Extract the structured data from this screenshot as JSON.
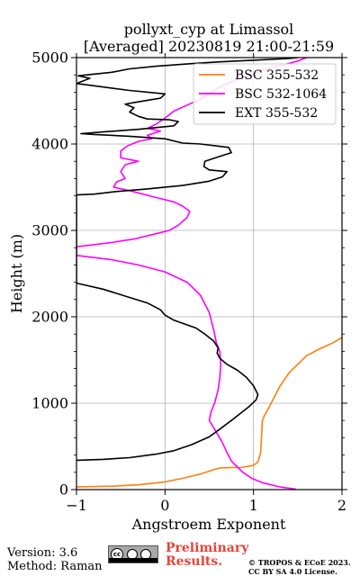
{
  "chart_data": {
    "type": "line",
    "title_line1": "pollyxt_cyp at Limassol",
    "title_line2": "[Averaged] 20230819 21:00-21:59",
    "xlabel": "Angstroem Exponent",
    "ylabel": "Height (m)",
    "xlim": [
      -1,
      2
    ],
    "ylim": [
      0,
      5000
    ],
    "x_ticks": [
      "−1",
      "0",
      "1",
      "2"
    ],
    "y_ticks": [
      "0",
      "1000",
      "2000",
      "3000",
      "4000",
      "5000"
    ],
    "grid": true,
    "legend_position": "top-right",
    "series": [
      {
        "name": "BSC 355-532",
        "color": "#ff7f0e",
        "points": [
          [
            -1.0,
            30
          ],
          [
            -0.6,
            40
          ],
          [
            -0.3,
            55
          ],
          [
            0.0,
            90
          ],
          [
            0.2,
            130
          ],
          [
            0.4,
            180
          ],
          [
            0.55,
            230
          ],
          [
            0.62,
            250
          ],
          [
            0.75,
            255
          ],
          [
            0.85,
            255
          ],
          [
            1.0,
            280
          ],
          [
            1.05,
            320
          ],
          [
            1.08,
            420
          ],
          [
            1.09,
            600
          ],
          [
            1.1,
            800
          ],
          [
            1.12,
            850
          ],
          [
            1.2,
            1000
          ],
          [
            1.3,
            1200
          ],
          [
            1.4,
            1350
          ],
          [
            1.5,
            1450
          ],
          [
            1.6,
            1550
          ],
          [
            1.75,
            1630
          ],
          [
            1.9,
            1700
          ],
          [
            2.0,
            1760
          ]
        ]
      },
      {
        "name": "BSC 532-1064",
        "color": "#ff00ff",
        "points": [
          [
            1.48,
            5
          ],
          [
            1.3,
            30
          ],
          [
            1.1,
            80
          ],
          [
            0.98,
            130
          ],
          [
            0.88,
            200
          ],
          [
            0.82,
            260
          ],
          [
            0.75,
            330
          ],
          [
            0.7,
            430
          ],
          [
            0.64,
            560
          ],
          [
            0.56,
            700
          ],
          [
            0.5,
            800
          ],
          [
            0.52,
            900
          ],
          [
            0.56,
            1000
          ],
          [
            0.6,
            1150
          ],
          [
            0.62,
            1300
          ],
          [
            0.63,
            1450
          ],
          [
            0.62,
            1600
          ],
          [
            0.58,
            1700
          ],
          [
            0.55,
            1850
          ],
          [
            0.5,
            2050
          ],
          [
            0.4,
            2250
          ],
          [
            0.25,
            2400
          ],
          [
            0.0,
            2520
          ],
          [
            -0.3,
            2600
          ],
          [
            -0.6,
            2660
          ],
          [
            -1.0,
            2710
          ],
          [
            -1.0,
            2810
          ],
          [
            -0.6,
            2860
          ],
          [
            -0.35,
            2900
          ],
          [
            -0.15,
            2950
          ],
          [
            0.05,
            3000
          ],
          [
            0.15,
            3060
          ],
          [
            0.25,
            3150
          ],
          [
            0.28,
            3220
          ],
          [
            0.2,
            3280
          ],
          [
            0.1,
            3330
          ],
          [
            -0.1,
            3380
          ],
          [
            -0.4,
            3460
          ],
          [
            -0.58,
            3500
          ],
          [
            -0.55,
            3560
          ],
          [
            -0.45,
            3600
          ],
          [
            -0.5,
            3680
          ],
          [
            -0.45,
            3760
          ],
          [
            -0.3,
            3800
          ],
          [
            -0.5,
            3840
          ],
          [
            -0.5,
            3920
          ],
          [
            -0.42,
            3980
          ],
          [
            -0.3,
            4030
          ],
          [
            -0.15,
            4060
          ],
          [
            -0.2,
            4100
          ],
          [
            -0.05,
            4150
          ],
          [
            -0.2,
            4180
          ],
          [
            -0.1,
            4230
          ],
          [
            0.0,
            4300
          ],
          [
            0.1,
            4380
          ],
          [
            0.25,
            4450
          ],
          [
            0.4,
            4520
          ],
          [
            0.5,
            4580
          ],
          [
            0.6,
            4650
          ],
          [
            0.8,
            4740
          ],
          [
            1.1,
            4850
          ],
          [
            1.5,
            4960
          ],
          [
            1.6,
            5000
          ]
        ]
      },
      {
        "name": "EXT 355-532",
        "color": "#000000",
        "points": [
          [
            -1.0,
            340
          ],
          [
            -0.7,
            350
          ],
          [
            -0.4,
            370
          ],
          [
            -0.1,
            410
          ],
          [
            0.1,
            450
          ],
          [
            0.3,
            520
          ],
          [
            0.5,
            610
          ],
          [
            0.62,
            700
          ],
          [
            0.75,
            800
          ],
          [
            0.85,
            880
          ],
          [
            0.95,
            960
          ],
          [
            1.03,
            1040
          ],
          [
            1.05,
            1100
          ],
          [
            1.0,
            1200
          ],
          [
            0.92,
            1300
          ],
          [
            0.82,
            1380
          ],
          [
            0.7,
            1450
          ],
          [
            0.62,
            1520
          ],
          [
            0.59,
            1580
          ],
          [
            0.6,
            1640
          ],
          [
            0.55,
            1720
          ],
          [
            0.45,
            1800
          ],
          [
            0.35,
            1870
          ],
          [
            0.1,
            1960
          ],
          [
            0.0,
            2020
          ],
          [
            -0.05,
            2080
          ],
          [
            -0.2,
            2160
          ],
          [
            -0.45,
            2240
          ],
          [
            -0.7,
            2320
          ],
          [
            -1.0,
            2390
          ],
          [
            -1.0,
            3410
          ],
          [
            -0.8,
            3420
          ],
          [
            -0.55,
            3450
          ],
          [
            -0.2,
            3480
          ],
          [
            0.2,
            3520
          ],
          [
            0.5,
            3570
          ],
          [
            0.65,
            3620
          ],
          [
            0.7,
            3680
          ],
          [
            0.5,
            3700
          ],
          [
            0.44,
            3740
          ],
          [
            0.45,
            3800
          ],
          [
            0.6,
            3850
          ],
          [
            0.75,
            3900
          ],
          [
            0.72,
            3960
          ],
          [
            0.4,
            4000
          ],
          [
            0.2,
            4010
          ],
          [
            0.0,
            4060
          ],
          [
            -0.4,
            4090
          ],
          [
            -0.8,
            4110
          ],
          [
            -0.95,
            4120
          ],
          [
            -0.7,
            4140
          ],
          [
            -0.3,
            4170
          ],
          [
            0.1,
            4210
          ],
          [
            0.15,
            4260
          ],
          [
            0.05,
            4280
          ],
          [
            -0.2,
            4290
          ],
          [
            -0.3,
            4320
          ],
          [
            -0.4,
            4370
          ],
          [
            -0.35,
            4420
          ],
          [
            -0.45,
            4460
          ],
          [
            -0.35,
            4480
          ],
          [
            -0.05,
            4530
          ],
          [
            0.0,
            4580
          ],
          [
            -0.4,
            4620
          ],
          [
            -0.85,
            4680
          ],
          [
            -1.0,
            4700
          ],
          [
            -0.85,
            4760
          ],
          [
            -0.98,
            4790
          ],
          [
            -0.6,
            4830
          ],
          [
            -0.4,
            4870
          ],
          [
            -0.1,
            4900
          ],
          [
            0.3,
            4930
          ],
          [
            0.6,
            4950
          ],
          [
            1.0,
            4970
          ],
          [
            1.4,
            4990
          ],
          [
            1.5,
            5000
          ]
        ]
      }
    ]
  },
  "footer": {
    "version": "Version: 3.6",
    "method": "Method: Raman",
    "preliminary_line1": "Preliminary",
    "preliminary_line2": "Results.",
    "copyright_line1": "© TROPOS & ECoE 2023.",
    "copyright_line2": "CC BY SA 4.0 License.",
    "badge_logo": "cc-by-sa-icon"
  }
}
